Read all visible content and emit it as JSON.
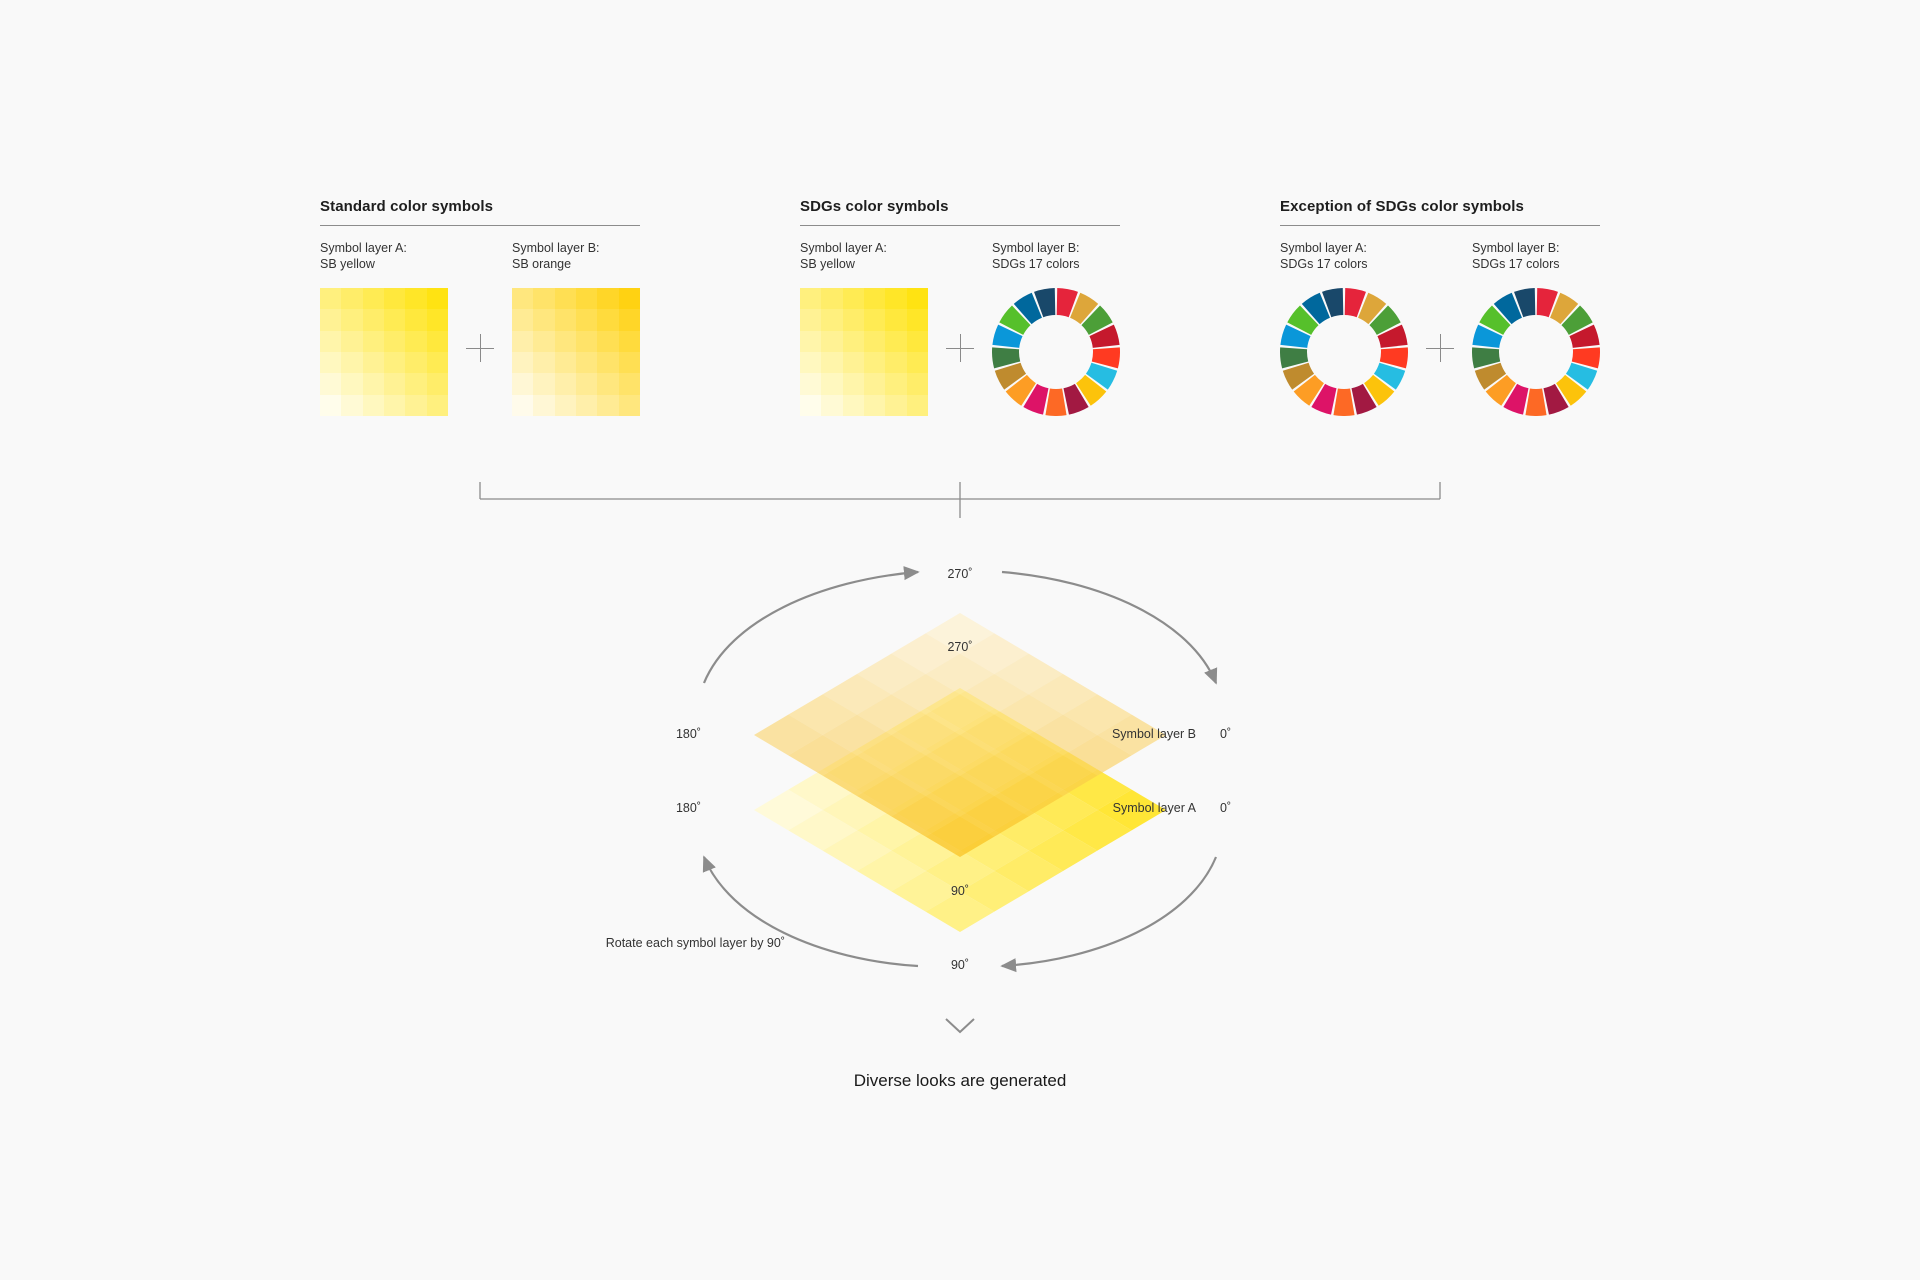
{
  "sections": [
    {
      "title": "Standard color symbols",
      "layer_a": {
        "label": "Symbol layer A:",
        "value": "SB yellow",
        "type": "yellow-grid"
      },
      "layer_b": {
        "label": "Symbol layer B:",
        "value": "SB orange",
        "type": "orange-grid"
      }
    },
    {
      "title": "SDGs color symbols",
      "layer_a": {
        "label": "Symbol layer A:",
        "value": "SB yellow",
        "type": "yellow-grid"
      },
      "layer_b": {
        "label": "Symbol layer B:",
        "value": "SDGs 17 colors",
        "type": "sdg-wheel"
      }
    },
    {
      "title": "Exception of SDGs color symbols",
      "layer_a": {
        "label": "Symbol layer A:",
        "value": "SDGs 17 colors",
        "type": "sdg-wheel"
      },
      "layer_b": {
        "label": "Symbol layer B:",
        "value": "SDGs 17 colors",
        "type": "sdg-wheel"
      }
    }
  ],
  "rotation": {
    "outer_top": "270˚",
    "inner_top": "270˚",
    "left_b": "180˚",
    "left_a": "180˚",
    "right_b": "0˚",
    "right_a": "0˚",
    "inner_bottom": "90˚",
    "outer_bottom": "90˚",
    "layer_b_label": "Symbol layer B",
    "layer_a_label": "Symbol layer A",
    "rotate_note": "Rotate each symbol layer by 90˚"
  },
  "result_label": "Diverse looks are generated",
  "colors": {
    "sb_yellow": "#FFE100",
    "sb_orange": "#FFCF00",
    "layer_a_deep": "#FFE31A",
    "layer_b_deep": "#F7B500",
    "line": "#8c8c8c",
    "sdg": [
      "#E5243B",
      "#DDA63A",
      "#4C9F38",
      "#C5192D",
      "#FF3A21",
      "#26BDE2",
      "#FCC30B",
      "#A21942",
      "#FD6925",
      "#DD1367",
      "#FD9D24",
      "#BF8B2E",
      "#3F7E44",
      "#0A97D9",
      "#56C02B",
      "#00689D",
      "#19486A"
    ]
  }
}
